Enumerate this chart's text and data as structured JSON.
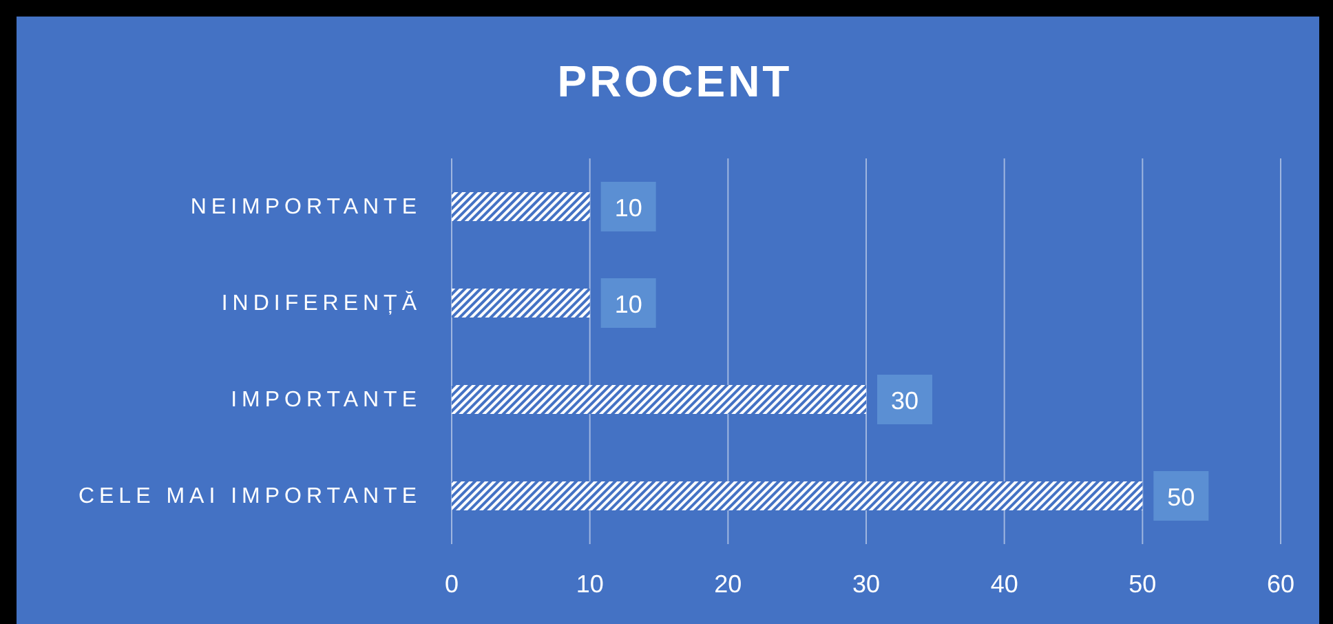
{
  "chart_data": {
    "type": "bar",
    "orientation": "horizontal",
    "title": "PROCENT",
    "categories": [
      "NEIMPORTANTE",
      "INDIFERENȚĂ",
      "IMPORTANTE",
      "CELE MAI IMPORTANTE"
    ],
    "values": [
      10,
      10,
      30,
      50
    ],
    "color": "#ffffff",
    "xlim": [
      0,
      60
    ],
    "xticks": [
      0,
      10,
      20,
      30,
      40,
      50,
      60
    ],
    "grid": "x",
    "data_labels": true
  }
}
